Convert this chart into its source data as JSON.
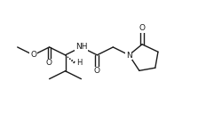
{
  "bg": "#ffffff",
  "lc": "#1a1a1a",
  "lw": 1.0,
  "fs": 6.5,
  "figsize": [
    2.23,
    1.46
  ],
  "dpi": 100,
  "xlim": [
    0,
    10.5
  ],
  "ylim": [
    1.5,
    7.0
  ]
}
